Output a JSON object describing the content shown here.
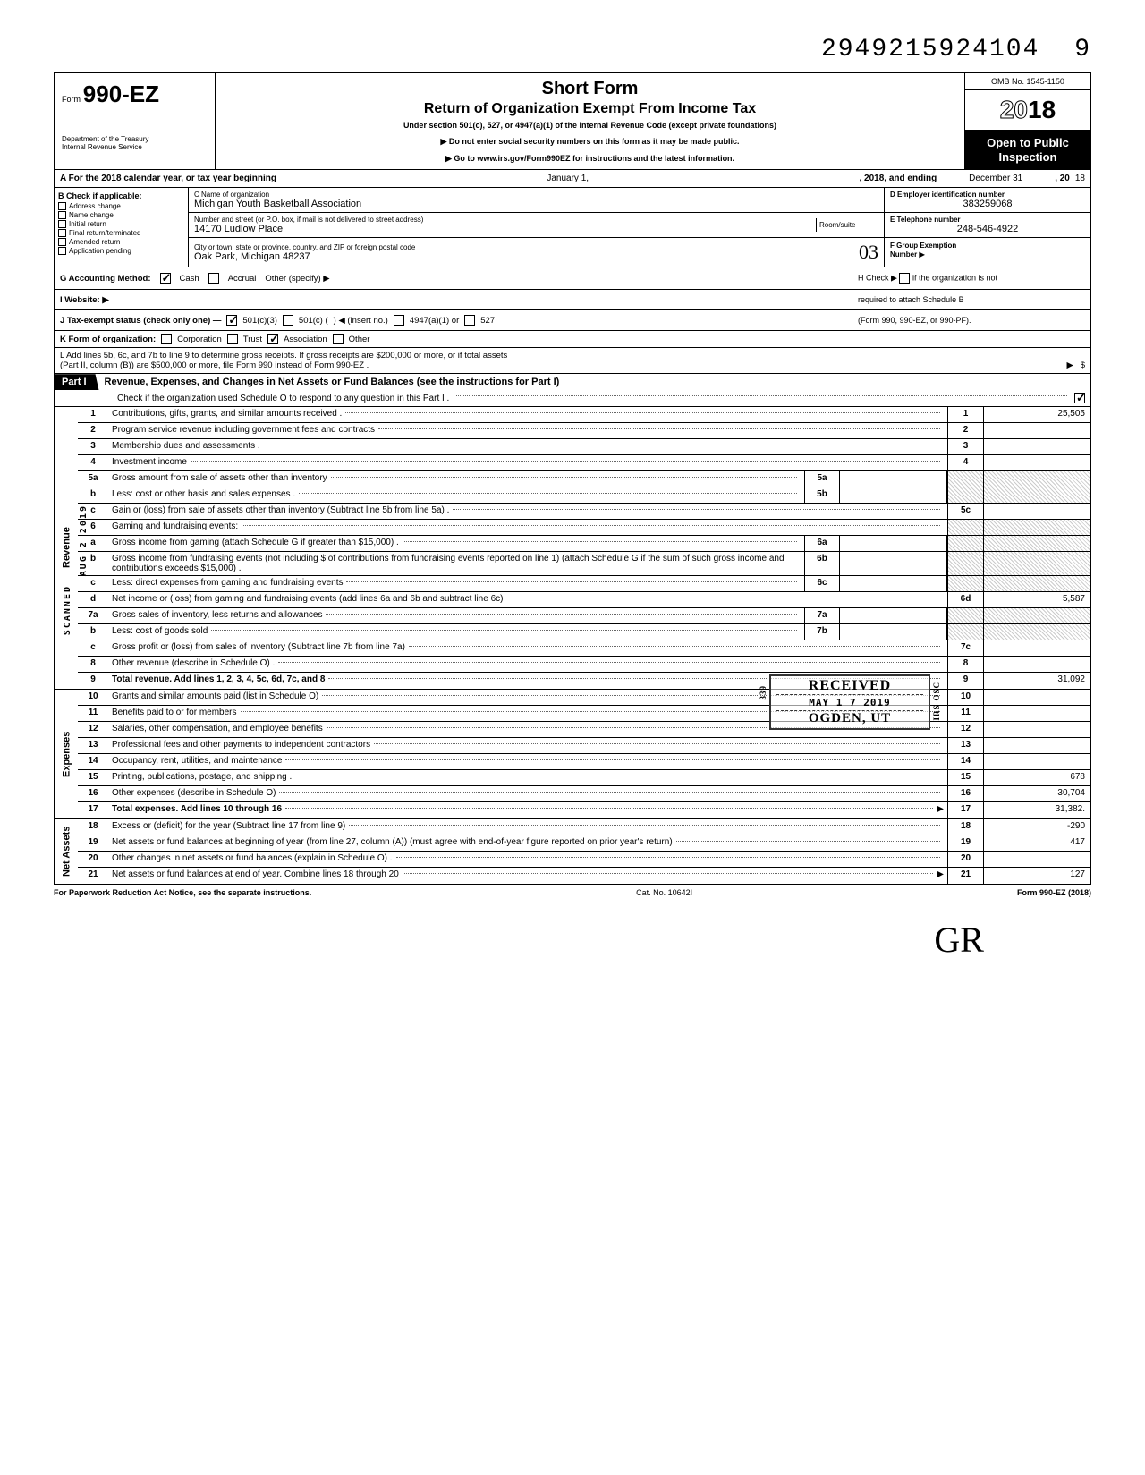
{
  "doc_number": "2949215924104",
  "doc_number_trail": "9",
  "form": {
    "prefix": "Form",
    "number": "990-EZ",
    "dept1": "Department of the Treasury",
    "dept2": "Internal Revenue Service"
  },
  "title": {
    "short": "Short Form",
    "main": "Return of Organization Exempt From Income Tax",
    "sub": "Under section 501(c), 527, or 4947(a)(1) of the Internal Revenue Code (except private foundations)",
    "warn": "▶ Do not enter social security numbers on this form as it may be made public.",
    "goto": "▶ Go to www.irs.gov/Form990EZ for instructions and the latest information."
  },
  "topright": {
    "omb": "OMB No. 1545-1150",
    "year_outline": "20",
    "year_solid": "18",
    "inspection1": "Open to Public",
    "inspection2": "Inspection"
  },
  "lineA": {
    "prefix": "A For the 2018 calendar year, or tax year beginning",
    "mid1": "January 1,",
    "mid2": ", 2018, and ending",
    "end1": "December 31",
    "end2": ", 20",
    "end3": "18"
  },
  "colB": {
    "hdr": "B Check if applicable:",
    "opts": [
      "Address change",
      "Name change",
      "Initial return",
      "Final return/terminated",
      "Amended return",
      "Application pending"
    ]
  },
  "colC": {
    "name_lbl": "C  Name of organization",
    "name": "Michigan Youth Basketball Association",
    "street_lbl": "Number and street (or P.O. box, if mail is not delivered to street address)",
    "street": "14170 Ludlow Place",
    "room_lbl": "Room/suite",
    "city_lbl": "City or town, state or province, country, and ZIP or foreign postal code",
    "city": "Oak Park, Michigan  48237"
  },
  "colD": {
    "ein_lbl": "D Employer identification number",
    "ein": "383259068",
    "tel_lbl": "E Telephone number",
    "tel": "248-546-4922",
    "grp_lbl": "F Group Exemption",
    "grp_lbl2": "Number ▶"
  },
  "handwritten_city": "03",
  "lineG": {
    "lbl": "G Accounting Method:",
    "cash": "Cash",
    "accrual": "Accrual",
    "other": "Other (specify) ▶"
  },
  "lineH": {
    "text1": "H Check ▶",
    "text2": "if the organization is not",
    "text3": "required to attach Schedule B",
    "text4": "(Form 990, 990-EZ, or 990-PF)."
  },
  "lineI": "I  Website: ▶",
  "lineJ": {
    "lbl": "J Tax-exempt status (check only one) —",
    "a": "501(c)(3)",
    "b": "501(c) (",
    "c": ") ◀ (insert no.)",
    "d": "4947(a)(1) or",
    "e": "527"
  },
  "lineK": {
    "lbl": "K Form of organization:",
    "corp": "Corporation",
    "trust": "Trust",
    "assoc": "Association",
    "other": "Other"
  },
  "lineL": {
    "t1": "L Add lines 5b, 6c, and 7b to line 9 to determine gross receipts. If gross receipts are $200,000 or more, or if total assets",
    "t2": "(Part II, column (B)) are $500,000 or more, file Form 990 instead of Form 990-EZ .",
    "arrow": "▶",
    "dollar": "$"
  },
  "part1": {
    "tab": "Part I",
    "title": "Revenue, Expenses, and Changes in Net Assets or Fund Balances (see the instructions for Part I)",
    "sub": "Check if the organization used Schedule O to respond to any question in this Part I ."
  },
  "sideLabels": {
    "rev": "Revenue",
    "exp": "Expenses",
    "net": "Net Assets"
  },
  "stampScanned": "SCANNED",
  "stampDate": "AUG  2  2019",
  "rows": [
    {
      "n": "1",
      "d": "Contributions, gifts, grants, and similar amounts received .",
      "eb": "1",
      "ev": "25,505"
    },
    {
      "n": "2",
      "d": "Program service revenue including government fees and contracts",
      "eb": "2",
      "ev": ""
    },
    {
      "n": "3",
      "d": "Membership dues and assessments .",
      "eb": "3",
      "ev": ""
    },
    {
      "n": "4",
      "d": "Investment income",
      "eb": "4",
      "ev": ""
    },
    {
      "n": "5a",
      "d": "Gross amount from sale of assets other than inventory",
      "mb": "5a",
      "mv": ""
    },
    {
      "n": "b",
      "d": "Less: cost or other basis and sales expenses .",
      "mb": "5b",
      "mv": ""
    },
    {
      "n": "c",
      "d": "Gain or (loss) from sale of assets other than inventory (Subtract line 5b from line 5a) .",
      "eb": "5c",
      "ev": ""
    },
    {
      "n": "6",
      "d": "Gaming and fundraising events:"
    },
    {
      "n": "a",
      "d": "Gross income from gaming (attach Schedule G if greater than $15,000) .",
      "mb": "6a",
      "mv": ""
    },
    {
      "n": "b",
      "d": "Gross income from fundraising events (not including  $                        of contributions from fundraising events reported on line 1) (attach Schedule G if the sum of such gross income and contributions exceeds $15,000) .",
      "mb": "6b",
      "mv": ""
    },
    {
      "n": "c",
      "d": "Less: direct expenses from gaming and fundraising events",
      "mb": "6c",
      "mv": ""
    },
    {
      "n": "d",
      "d": "Net income or (loss) from gaming and fundraising events (add lines 6a and 6b and subtract line 6c)",
      "eb": "6d",
      "ev": "5,587"
    },
    {
      "n": "7a",
      "d": "Gross sales of inventory, less returns and allowances",
      "mb": "7a",
      "mv": ""
    },
    {
      "n": "b",
      "d": "Less: cost of goods sold",
      "mb": "7b",
      "mv": ""
    },
    {
      "n": "c",
      "d": "Gross profit or (loss) from sales of inventory (Subtract line 7b from line 7a)",
      "eb": "7c",
      "ev": ""
    },
    {
      "n": "8",
      "d": "Other revenue (describe in Schedule O) .",
      "eb": "8",
      "ev": ""
    },
    {
      "n": "9",
      "d": "Total revenue. Add lines 1, 2, 3, 4, 5c, 6d, 7c, and 8",
      "eb": "9",
      "ev": "31,092",
      "bold": true
    },
    {
      "n": "10",
      "d": "Grants and similar amounts paid (list in Schedule O)",
      "eb": "10",
      "ev": ""
    },
    {
      "n": "11",
      "d": "Benefits paid to or for members",
      "eb": "11",
      "ev": ""
    },
    {
      "n": "12",
      "d": "Salaries, other compensation, and employee benefits",
      "eb": "12",
      "ev": ""
    },
    {
      "n": "13",
      "d": "Professional fees and other payments to independent contractors",
      "eb": "13",
      "ev": ""
    },
    {
      "n": "14",
      "d": "Occupancy, rent, utilities, and maintenance",
      "eb": "14",
      "ev": ""
    },
    {
      "n": "15",
      "d": "Printing, publications, postage, and shipping .",
      "eb": "15",
      "ev": "678"
    },
    {
      "n": "16",
      "d": "Other expenses (describe in Schedule O)",
      "eb": "16",
      "ev": "30,704"
    },
    {
      "n": "17",
      "d": "Total expenses. Add lines 10 through 16",
      "eb": "17",
      "ev": "31,382.",
      "bold": true,
      "arrow": true
    },
    {
      "n": "18",
      "d": "Excess or (deficit) for the year (Subtract line 17 from line 9)",
      "eb": "18",
      "ev": "-290"
    },
    {
      "n": "19",
      "d": "Net assets or fund balances at beginning of year (from line 27, column (A)) (must agree with end-of-year figure reported on prior year's return)",
      "eb": "19",
      "ev": "417"
    },
    {
      "n": "20",
      "d": "Other changes in net assets or fund balances (explain in Schedule O) .",
      "eb": "20",
      "ev": ""
    },
    {
      "n": "21",
      "d": "Net assets or fund balances at end of year. Combine lines 18 through 20",
      "eb": "21",
      "ev": "127",
      "arrow": true
    }
  ],
  "receivedStamp": {
    "l1": "RECEIVED",
    "l2": "MAY 1 7 2019",
    "l3": "OGDEN, UT",
    "side1": "339",
    "side2": "IRS-OSC"
  },
  "footer": {
    "left": "For Paperwork Reduction Act Notice, see the separate instructions.",
    "mid": "Cat. No. 10642I",
    "right": "Form 990-EZ (2018)"
  },
  "signature": "GR"
}
